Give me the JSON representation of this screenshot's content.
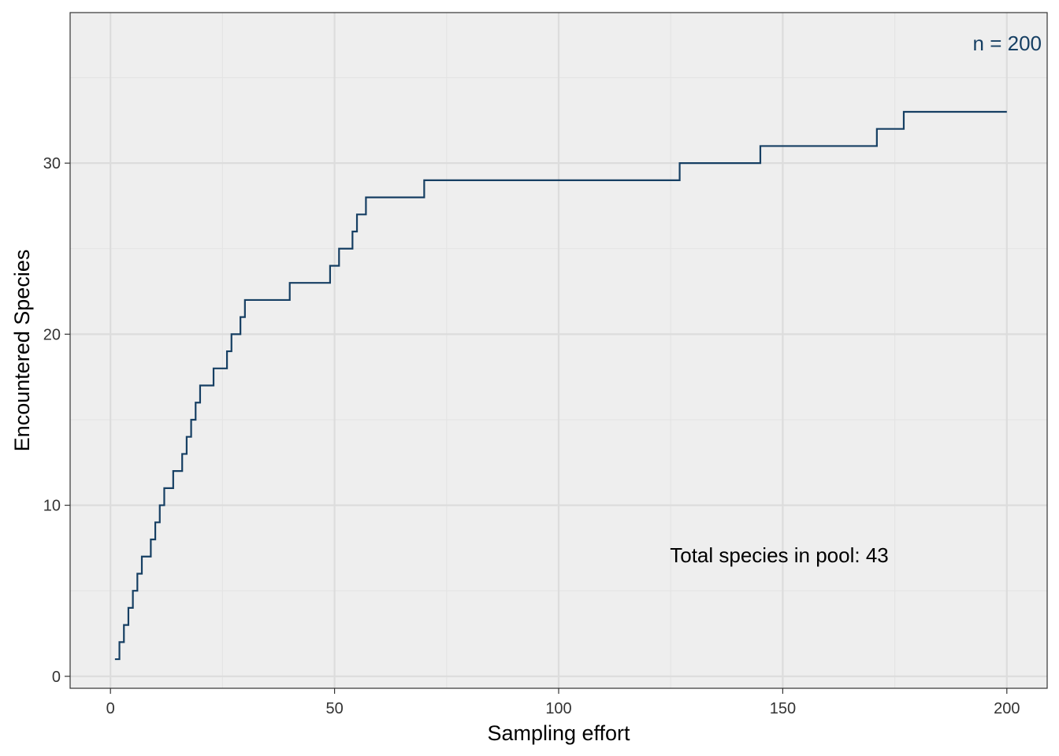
{
  "chart_data": {
    "type": "line",
    "step": true,
    "xlabel": "Sampling effort",
    "ylabel": "Encountered Species",
    "xlim": [
      -9,
      209
    ],
    "ylim": [
      -0.7,
      38.8
    ],
    "xticks": [
      0,
      50,
      100,
      150,
      200
    ],
    "yticks": [
      0,
      10,
      20,
      30
    ],
    "x_tick_labels": [
      "0",
      "50",
      "100",
      "150",
      "200"
    ],
    "y_tick_labels": [
      "0",
      "10",
      "20",
      "30"
    ],
    "grid": true,
    "legend": "none",
    "annotations": {
      "n_label": "n = 200",
      "pool_label": "Total species in pool: 43"
    },
    "series": [
      {
        "color": "#163f63",
        "x": [
          1,
          2,
          3,
          4,
          5,
          6,
          7,
          9,
          10,
          11,
          12,
          14,
          16,
          17,
          18,
          19,
          20,
          23,
          26,
          27,
          29,
          30,
          40,
          49,
          51,
          54,
          55,
          57,
          70,
          127,
          145,
          171,
          177,
          200
        ],
        "y": [
          1,
          2,
          3,
          4,
          5,
          6,
          7,
          8,
          9,
          10,
          11,
          12,
          13,
          14,
          15,
          16,
          17,
          18,
          19,
          20,
          21,
          22,
          23,
          24,
          25,
          26,
          27,
          28,
          29,
          30,
          31,
          32,
          33,
          33
        ]
      }
    ]
  },
  "colors": {
    "panel_bg": "#eeeeee",
    "grid_major": "#dcdcdc",
    "grid_minor": "#e4e4e4",
    "line": "#163f63",
    "annotation_n": "#163f63",
    "annotation_pool": "#000000"
  }
}
